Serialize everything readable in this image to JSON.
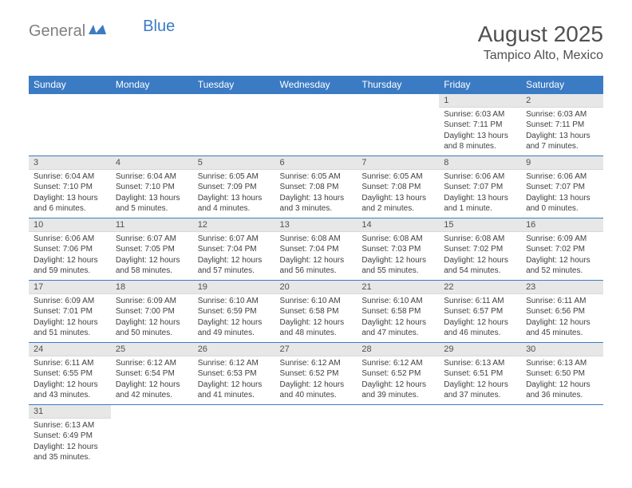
{
  "logo": {
    "gray_text": "General",
    "blue_text": "Blue"
  },
  "title": "August 2025",
  "location": "Tampico Alto, Mexico",
  "colors": {
    "header_bg": "#3b7bc4",
    "header_text": "#ffffff",
    "daynum_bg": "#e7e7e7",
    "text_dark": "#505050",
    "body_text": "#404040",
    "row_border": "#3b7bc4"
  },
  "weekdays": [
    "Sunday",
    "Monday",
    "Tuesday",
    "Wednesday",
    "Thursday",
    "Friday",
    "Saturday"
  ],
  "days": {
    "1": {
      "sunrise": "6:03 AM",
      "sunset": "7:11 PM",
      "daylight": "13 hours and 8 minutes."
    },
    "2": {
      "sunrise": "6:03 AM",
      "sunset": "7:11 PM",
      "daylight": "13 hours and 7 minutes."
    },
    "3": {
      "sunrise": "6:04 AM",
      "sunset": "7:10 PM",
      "daylight": "13 hours and 6 minutes."
    },
    "4": {
      "sunrise": "6:04 AM",
      "sunset": "7:10 PM",
      "daylight": "13 hours and 5 minutes."
    },
    "5": {
      "sunrise": "6:05 AM",
      "sunset": "7:09 PM",
      "daylight": "13 hours and 4 minutes."
    },
    "6": {
      "sunrise": "6:05 AM",
      "sunset": "7:08 PM",
      "daylight": "13 hours and 3 minutes."
    },
    "7": {
      "sunrise": "6:05 AM",
      "sunset": "7:08 PM",
      "daylight": "13 hours and 2 minutes."
    },
    "8": {
      "sunrise": "6:06 AM",
      "sunset": "7:07 PM",
      "daylight": "13 hours and 1 minute."
    },
    "9": {
      "sunrise": "6:06 AM",
      "sunset": "7:07 PM",
      "daylight": "13 hours and 0 minutes."
    },
    "10": {
      "sunrise": "6:06 AM",
      "sunset": "7:06 PM",
      "daylight": "12 hours and 59 minutes."
    },
    "11": {
      "sunrise": "6:07 AM",
      "sunset": "7:05 PM",
      "daylight": "12 hours and 58 minutes."
    },
    "12": {
      "sunrise": "6:07 AM",
      "sunset": "7:04 PM",
      "daylight": "12 hours and 57 minutes."
    },
    "13": {
      "sunrise": "6:08 AM",
      "sunset": "7:04 PM",
      "daylight": "12 hours and 56 minutes."
    },
    "14": {
      "sunrise": "6:08 AM",
      "sunset": "7:03 PM",
      "daylight": "12 hours and 55 minutes."
    },
    "15": {
      "sunrise": "6:08 AM",
      "sunset": "7:02 PM",
      "daylight": "12 hours and 54 minutes."
    },
    "16": {
      "sunrise": "6:09 AM",
      "sunset": "7:02 PM",
      "daylight": "12 hours and 52 minutes."
    },
    "17": {
      "sunrise": "6:09 AM",
      "sunset": "7:01 PM",
      "daylight": "12 hours and 51 minutes."
    },
    "18": {
      "sunrise": "6:09 AM",
      "sunset": "7:00 PM",
      "daylight": "12 hours and 50 minutes."
    },
    "19": {
      "sunrise": "6:10 AM",
      "sunset": "6:59 PM",
      "daylight": "12 hours and 49 minutes."
    },
    "20": {
      "sunrise": "6:10 AM",
      "sunset": "6:58 PM",
      "daylight": "12 hours and 48 minutes."
    },
    "21": {
      "sunrise": "6:10 AM",
      "sunset": "6:58 PM",
      "daylight": "12 hours and 47 minutes."
    },
    "22": {
      "sunrise": "6:11 AM",
      "sunset": "6:57 PM",
      "daylight": "12 hours and 46 minutes."
    },
    "23": {
      "sunrise": "6:11 AM",
      "sunset": "6:56 PM",
      "daylight": "12 hours and 45 minutes."
    },
    "24": {
      "sunrise": "6:11 AM",
      "sunset": "6:55 PM",
      "daylight": "12 hours and 43 minutes."
    },
    "25": {
      "sunrise": "6:12 AM",
      "sunset": "6:54 PM",
      "daylight": "12 hours and 42 minutes."
    },
    "26": {
      "sunrise": "6:12 AM",
      "sunset": "6:53 PM",
      "daylight": "12 hours and 41 minutes."
    },
    "27": {
      "sunrise": "6:12 AM",
      "sunset": "6:52 PM",
      "daylight": "12 hours and 40 minutes."
    },
    "28": {
      "sunrise": "6:12 AM",
      "sunset": "6:52 PM",
      "daylight": "12 hours and 39 minutes."
    },
    "29": {
      "sunrise": "6:13 AM",
      "sunset": "6:51 PM",
      "daylight": "12 hours and 37 minutes."
    },
    "30": {
      "sunrise": "6:13 AM",
      "sunset": "6:50 PM",
      "daylight": "12 hours and 36 minutes."
    },
    "31": {
      "sunrise": "6:13 AM",
      "sunset": "6:49 PM",
      "daylight": "12 hours and 35 minutes."
    }
  },
  "layout": {
    "first_weekday_index": 5,
    "num_days": 31,
    "labels": {
      "sunrise": "Sunrise: ",
      "sunset": "Sunset: ",
      "daylight": "Daylight: "
    }
  }
}
